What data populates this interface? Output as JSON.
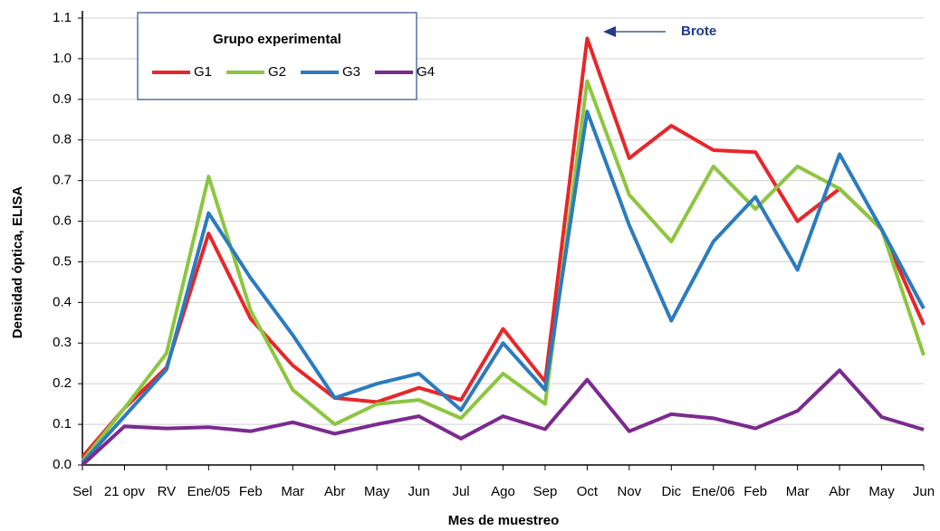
{
  "chart_data": {
    "type": "line",
    "ylabel": "Densidad óptica, ELISA",
    "xlabel": "Mes de muestreo",
    "annotation": "Brote",
    "legend_title": "Grupo experimental",
    "legend": "top-left",
    "grid": true,
    "categories": [
      "Sel",
      "21 opv",
      "RV",
      "Ene/05",
      "Feb",
      "Mar",
      "Abr",
      "May",
      "Jun",
      "Jul",
      "Ago",
      "Sep",
      "Oct",
      "Nov",
      "Dic",
      "Ene/06",
      "Feb",
      "Mar",
      "Abr",
      "May",
      "Jun"
    ],
    "ylim": [
      0,
      1.1
    ],
    "yticks": [
      {
        "value": 0,
        "label": "0.0"
      },
      0.1,
      0.2,
      0.3,
      0.4,
      0.5,
      0.6,
      0.7,
      0.8,
      0.9,
      {
        "value": 1,
        "label": "1.0"
      },
      1.1
    ],
    "series": [
      {
        "name": "G1",
        "color": "#e8262a",
        "values": [
          0.02,
          0.14,
          0.24,
          0.57,
          0.36,
          0.245,
          0.165,
          0.155,
          0.19,
          0.16,
          0.335,
          0.205,
          1.05,
          0.755,
          0.835,
          0.775,
          0.77,
          0.6,
          0.68,
          0.58,
          0.345
        ]
      },
      {
        "name": "G2",
        "color": "#8cc63f",
        "values": [
          0.01,
          0.14,
          0.275,
          0.71,
          0.38,
          0.185,
          0.1,
          0.15,
          0.16,
          0.115,
          0.225,
          0.15,
          0.945,
          0.665,
          0.55,
          0.735,
          0.63,
          0.735,
          0.68,
          0.58,
          0.27
        ]
      },
      {
        "name": "G3",
        "color": "#2b7bbf",
        "values": [
          0.005,
          0.12,
          0.235,
          0.62,
          0.46,
          0.32,
          0.165,
          0.2,
          0.225,
          0.135,
          0.3,
          0.185,
          0.87,
          0.59,
          0.355,
          0.55,
          0.66,
          0.48,
          0.765,
          0.58,
          0.385
        ]
      },
      {
        "name": "G4",
        "color": "#7b2a8f",
        "values": [
          0.0,
          0.095,
          0.09,
          0.093,
          0.083,
          0.105,
          0.077,
          0.1,
          0.12,
          0.065,
          0.12,
          0.088,
          0.21,
          0.083,
          0.125,
          0.115,
          0.09,
          0.133,
          0.233,
          0.118,
          0.087
        ]
      }
    ]
  }
}
